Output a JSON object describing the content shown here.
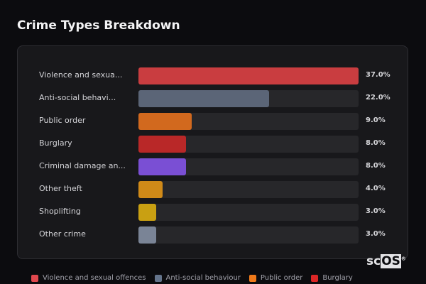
{
  "chart_data": {
    "type": "bar",
    "orientation": "horizontal",
    "title": "Crime Types Breakdown",
    "categories": [
      "Violence and sexual offences",
      "Anti-social behaviour",
      "Public order",
      "Burglary",
      "Criminal damage and arson",
      "Other theft",
      "Shoplifting",
      "Other crime"
    ],
    "display_labels": [
      "Violence and sexua...",
      "Anti-social behavi...",
      "Public order",
      "Burglary",
      "Criminal damage an...",
      "Other theft",
      "Shoplifting",
      "Other crime"
    ],
    "values": [
      37.0,
      22.0,
      9.0,
      8.0,
      8.0,
      4.0,
      3.0,
      3.0
    ],
    "value_labels": [
      "37.0%",
      "22.0%",
      "9.0%",
      "8.0%",
      "8.0%",
      "4.0%",
      "3.0%",
      "3.0%"
    ],
    "colors": [
      "#c93d40",
      "#5b6577",
      "#d2691e",
      "#b92828",
      "#7a4fd4",
      "#d08a18",
      "#c9a012",
      "#7a8496"
    ],
    "xlim": [
      0,
      37
    ],
    "legend": {
      "placement": "bottom",
      "items": [
        {
          "label": "Violence and sexual offences",
          "color": "#e0484e"
        },
        {
          "label": "Anti-social behaviour",
          "color": "#64748b"
        },
        {
          "label": "Public order",
          "color": "#f07a1a"
        },
        {
          "label": "Burglary",
          "color": "#dc2626"
        }
      ]
    }
  },
  "logo": {
    "text_a": "sc",
    "text_b": "OS",
    "mark": "®"
  }
}
